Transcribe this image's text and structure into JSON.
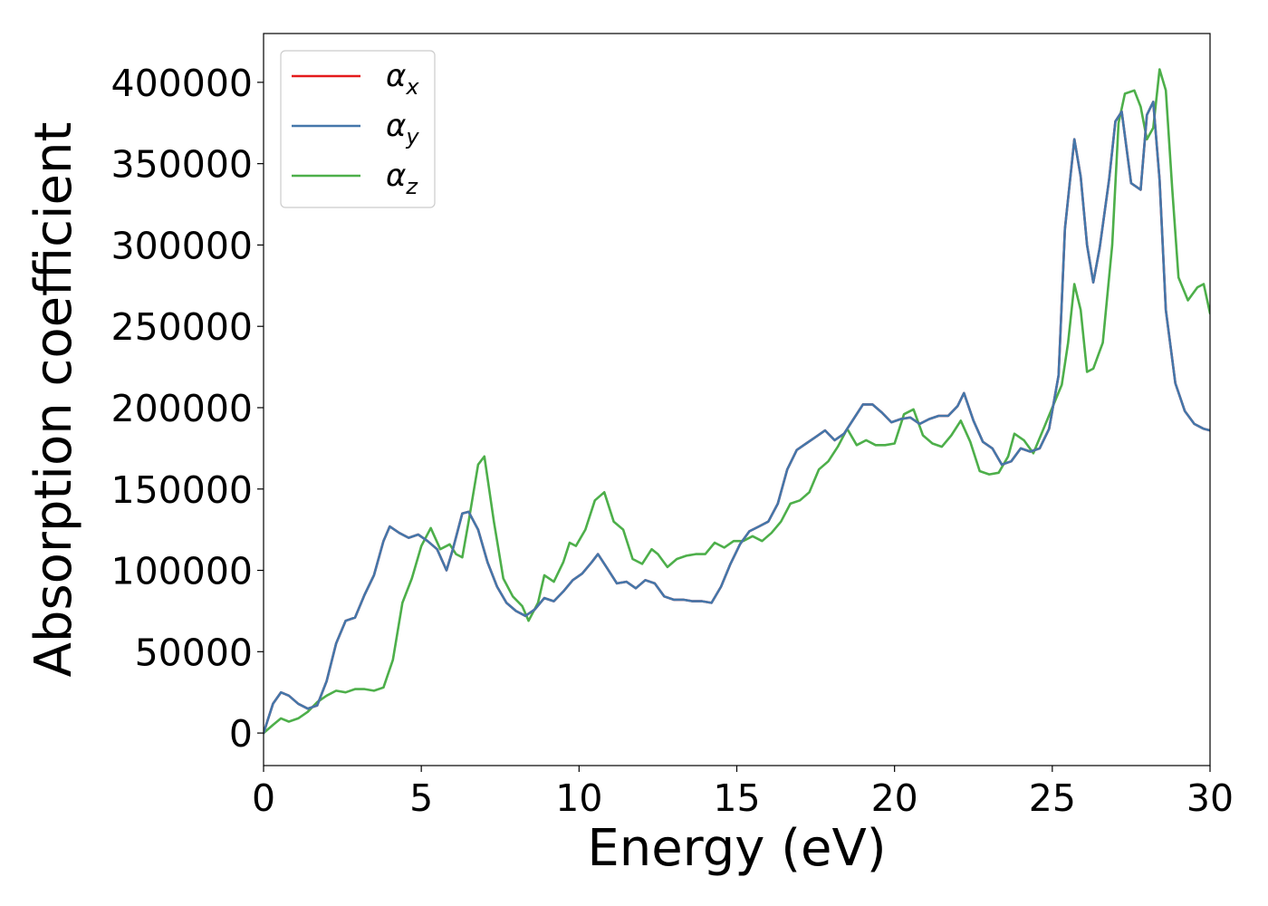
{
  "chart_data": {
    "type": "line",
    "title": "",
    "xlabel": "Energy (eV)",
    "ylabel": "Absorption coefficient",
    "xlim": [
      0,
      30
    ],
    "ylim": [
      -20000,
      430000
    ],
    "xticks": [
      0,
      5,
      10,
      15,
      20,
      25,
      30
    ],
    "yticks": [
      0,
      50000,
      100000,
      150000,
      200000,
      250000,
      300000,
      350000,
      400000
    ],
    "grid": false,
    "legend_position": "top-left",
    "series": [
      {
        "name": "α_x",
        "symbol": "α",
        "subscript": "x",
        "color": "#e41a1c",
        "x": [
          0,
          0.3,
          0.55,
          0.8,
          1.1,
          1.4,
          1.7,
          2.0,
          2.3,
          2.6,
          2.9,
          3.2,
          3.5,
          3.8,
          4.0,
          4.3,
          4.6,
          4.9,
          5.2,
          5.5,
          5.8,
          6.0,
          6.3,
          6.5,
          6.8,
          7.1,
          7.4,
          7.7,
          8.0,
          8.3,
          8.6,
          8.9,
          9.2,
          9.5,
          9.8,
          10.1,
          10.4,
          10.6,
          10.9,
          11.2,
          11.5,
          11.8,
          12.1,
          12.4,
          12.7,
          13.0,
          13.3,
          13.6,
          13.9,
          14.2,
          14.5,
          14.8,
          15.1,
          15.4,
          15.7,
          16.0,
          16.3,
          16.6,
          16.9,
          17.2,
          17.5,
          17.8,
          18.1,
          18.4,
          18.7,
          19.0,
          19.3,
          19.6,
          19.9,
          20.2,
          20.5,
          20.8,
          21.1,
          21.4,
          21.7,
          22.0,
          22.2,
          22.5,
          22.8,
          23.1,
          23.4,
          23.7,
          24.0,
          24.3,
          24.6,
          24.9,
          25.2,
          25.4,
          25.7,
          25.9,
          26.1,
          26.3,
          26.5,
          26.8,
          27.0,
          27.2,
          27.5,
          27.8,
          28.0,
          28.2,
          28.4,
          28.6,
          28.9,
          29.2,
          29.5,
          29.8,
          30.0
        ],
        "y": [
          0,
          18000,
          25000,
          23000,
          18000,
          15000,
          17000,
          32000,
          55000,
          69000,
          71000,
          85000,
          97000,
          118000,
          127000,
          123000,
          120000,
          122000,
          118000,
          113000,
          100000,
          113000,
          135000,
          136000,
          125000,
          105000,
          90000,
          80000,
          75000,
          72000,
          76000,
          83000,
          81000,
          87000,
          94000,
          98000,
          105000,
          110000,
          101000,
          92000,
          93000,
          89000,
          94000,
          92000,
          84000,
          82000,
          82000,
          81000,
          81000,
          80000,
          90000,
          104000,
          116000,
          124000,
          127000,
          130000,
          141000,
          162000,
          174000,
          178000,
          182000,
          186000,
          180000,
          184000,
          193000,
          202000,
          202000,
          197000,
          191000,
          193000,
          194000,
          190000,
          193000,
          195000,
          195000,
          201000,
          209000,
          192000,
          179000,
          175000,
          165000,
          167000,
          175000,
          173000,
          175000,
          187000,
          220000,
          310000,
          365000,
          342000,
          300000,
          277000,
          298000,
          340000,
          376000,
          382000,
          338000,
          334000,
          380000,
          388000,
          340000,
          260000,
          215000,
          198000,
          190000,
          187000,
          186000
        ]
      },
      {
        "name": "α_y",
        "symbol": "α",
        "subscript": "y",
        "color": "#4477aa",
        "x": [
          0,
          0.3,
          0.55,
          0.8,
          1.1,
          1.4,
          1.7,
          2.0,
          2.3,
          2.6,
          2.9,
          3.2,
          3.5,
          3.8,
          4.0,
          4.3,
          4.6,
          4.9,
          5.2,
          5.5,
          5.8,
          6.0,
          6.3,
          6.5,
          6.8,
          7.1,
          7.4,
          7.7,
          8.0,
          8.3,
          8.6,
          8.9,
          9.2,
          9.5,
          9.8,
          10.1,
          10.4,
          10.6,
          10.9,
          11.2,
          11.5,
          11.8,
          12.1,
          12.4,
          12.7,
          13.0,
          13.3,
          13.6,
          13.9,
          14.2,
          14.5,
          14.8,
          15.1,
          15.4,
          15.7,
          16.0,
          16.3,
          16.6,
          16.9,
          17.2,
          17.5,
          17.8,
          18.1,
          18.4,
          18.7,
          19.0,
          19.3,
          19.6,
          19.9,
          20.2,
          20.5,
          20.8,
          21.1,
          21.4,
          21.7,
          22.0,
          22.2,
          22.5,
          22.8,
          23.1,
          23.4,
          23.7,
          24.0,
          24.3,
          24.6,
          24.9,
          25.2,
          25.4,
          25.7,
          25.9,
          26.1,
          26.3,
          26.5,
          26.8,
          27.0,
          27.2,
          27.5,
          27.8,
          28.0,
          28.2,
          28.4,
          28.6,
          28.9,
          29.2,
          29.5,
          29.8,
          30.0
        ],
        "y": [
          0,
          18000,
          25000,
          23000,
          18000,
          15000,
          17000,
          32000,
          55000,
          69000,
          71000,
          85000,
          97000,
          118000,
          127000,
          123000,
          120000,
          122000,
          118000,
          113000,
          100000,
          113000,
          135000,
          136000,
          125000,
          105000,
          90000,
          80000,
          75000,
          72000,
          76000,
          83000,
          81000,
          87000,
          94000,
          98000,
          105000,
          110000,
          101000,
          92000,
          93000,
          89000,
          94000,
          92000,
          84000,
          82000,
          82000,
          81000,
          81000,
          80000,
          90000,
          104000,
          116000,
          124000,
          127000,
          130000,
          141000,
          162000,
          174000,
          178000,
          182000,
          186000,
          180000,
          184000,
          193000,
          202000,
          202000,
          197000,
          191000,
          193000,
          194000,
          190000,
          193000,
          195000,
          195000,
          201000,
          209000,
          192000,
          179000,
          175000,
          165000,
          167000,
          175000,
          173000,
          175000,
          187000,
          220000,
          310000,
          365000,
          342000,
          300000,
          277000,
          298000,
          340000,
          376000,
          382000,
          338000,
          334000,
          380000,
          388000,
          340000,
          260000,
          215000,
          198000,
          190000,
          187000,
          186000
        ]
      },
      {
        "name": "α_z",
        "symbol": "α",
        "subscript": "z",
        "color": "#4daf4a",
        "x": [
          0,
          0.3,
          0.55,
          0.8,
          1.1,
          1.4,
          1.7,
          2.0,
          2.3,
          2.6,
          2.9,
          3.2,
          3.5,
          3.8,
          4.1,
          4.4,
          4.7,
          5.0,
          5.3,
          5.6,
          5.9,
          6.1,
          6.3,
          6.5,
          6.8,
          7.0,
          7.3,
          7.6,
          7.9,
          8.2,
          8.4,
          8.7,
          8.9,
          9.2,
          9.5,
          9.7,
          9.9,
          10.2,
          10.5,
          10.8,
          11.1,
          11.4,
          11.7,
          12.0,
          12.3,
          12.5,
          12.8,
          13.1,
          13.4,
          13.7,
          14.0,
          14.3,
          14.6,
          14.9,
          15.2,
          15.5,
          15.8,
          16.1,
          16.4,
          16.7,
          17.0,
          17.3,
          17.6,
          17.9,
          18.2,
          18.5,
          18.8,
          19.1,
          19.4,
          19.7,
          20.0,
          20.3,
          20.6,
          20.9,
          21.2,
          21.5,
          21.8,
          22.1,
          22.4,
          22.7,
          23.0,
          23.3,
          23.6,
          23.8,
          24.1,
          24.4,
          24.7,
          25.0,
          25.3,
          25.5,
          25.7,
          25.9,
          26.1,
          26.3,
          26.6,
          26.9,
          27.1,
          27.3,
          27.6,
          27.8,
          28.0,
          28.2,
          28.4,
          28.6,
          28.8,
          29.0,
          29.3,
          29.6,
          29.8,
          30.0
        ],
        "y": [
          0,
          5000,
          9000,
          7000,
          9000,
          13000,
          19000,
          23000,
          26000,
          25000,
          27000,
          27000,
          26000,
          28000,
          45000,
          80000,
          95000,
          115000,
          126000,
          113000,
          116000,
          110000,
          108000,
          130000,
          165000,
          170000,
          130000,
          95000,
          84000,
          78000,
          69000,
          80000,
          97000,
          93000,
          105000,
          117000,
          115000,
          125000,
          143000,
          148000,
          130000,
          125000,
          107000,
          104000,
          113000,
          110000,
          102000,
          107000,
          109000,
          110000,
          110000,
          117000,
          114000,
          118000,
          118000,
          121000,
          118000,
          123000,
          130000,
          141000,
          143000,
          148000,
          162000,
          167000,
          176000,
          187000,
          177000,
          180000,
          177000,
          177000,
          178000,
          196000,
          199000,
          183000,
          178000,
          176000,
          183000,
          192000,
          179000,
          161000,
          159000,
          160000,
          170000,
          184000,
          180000,
          172000,
          186000,
          200000,
          214000,
          240000,
          276000,
          260000,
          222000,
          224000,
          240000,
          300000,
          375000,
          393000,
          395000,
          385000,
          365000,
          372000,
          408000,
          395000,
          335000,
          280000,
          266000,
          274000,
          276000,
          258000
        ]
      }
    ]
  }
}
